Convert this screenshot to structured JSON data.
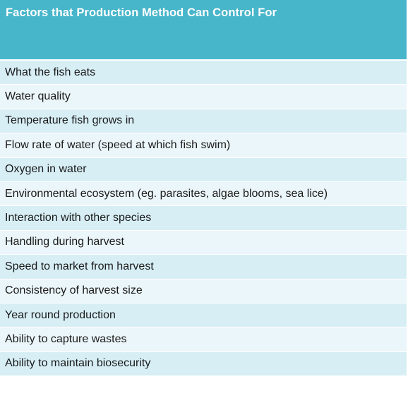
{
  "table": {
    "header": "Factors that Production Method Can Control For",
    "rows": [
      "What the fish eats",
      "Water quality",
      "Temperature fish grows in",
      "Flow rate of water (speed at which fish swim)",
      "Oxygen in water",
      "Environmental ecosystem  (eg. parasites, algae blooms, sea lice)",
      "Interaction with other species",
      "Handling during harvest",
      "Speed to market from harvest",
      "Consistency of harvest size",
      "Year round production",
      "Ability to capture wastes",
      "Ability to maintain biosecurity"
    ]
  },
  "colors": {
    "header_bg": "#47b5ca",
    "row_dark": "#d7eef5",
    "row_light": "#ebf6fa"
  }
}
